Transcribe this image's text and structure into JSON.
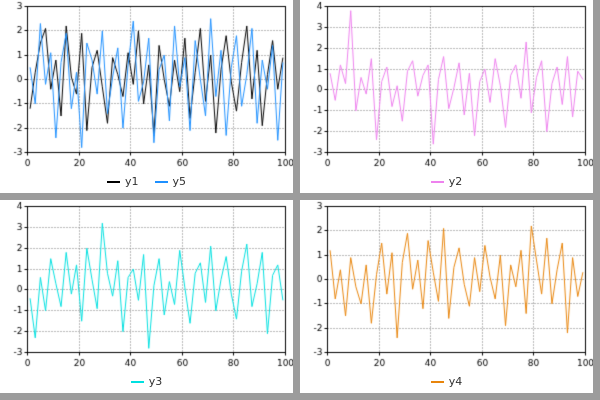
{
  "page": {
    "background": "#ffffff",
    "divider_color": "#9c9c9c",
    "grid_style": "dotted",
    "axis_color": "#000000"
  },
  "chart_data": [
    {
      "type": "line",
      "title": "",
      "xlabel": "",
      "ylabel": "",
      "xlim": [
        0,
        100
      ],
      "ylim": [
        -3,
        3
      ],
      "xticks": [
        0,
        20,
        40,
        60,
        80,
        100
      ],
      "ytick_step": 1,
      "grid": "dotted",
      "legend_position": "bottom-center",
      "x": [
        1,
        3,
        5,
        7,
        9,
        11,
        13,
        15,
        17,
        19,
        21,
        23,
        25,
        27,
        29,
        31,
        33,
        35,
        37,
        39,
        41,
        43,
        45,
        47,
        49,
        51,
        53,
        55,
        57,
        59,
        61,
        63,
        65,
        67,
        69,
        71,
        73,
        75,
        77,
        79,
        81,
        83,
        85,
        87,
        89,
        91,
        93,
        95,
        97,
        99
      ],
      "series": [
        {
          "name": "y1",
          "color": "#000000",
          "values": [
            -1.2,
            0.3,
            1.5,
            2.1,
            -0.4,
            0.8,
            -1.5,
            2.2,
            0.1,
            -0.6,
            1.9,
            -2.1,
            0.5,
            1.2,
            -0.3,
            -1.8,
            0.9,
            0.2,
            -0.7,
            1.1,
            -0.2,
            2.0,
            -1.0,
            0.6,
            -2.3,
            1.4,
            0.0,
            -1.1,
            0.8,
            -0.5,
            1.7,
            -1.6,
            0.3,
            2.1,
            -0.9,
            1.0,
            -2.2,
            0.4,
            1.8,
            -0.1,
            -1.3,
            0.7,
            2.2,
            -0.8,
            1.2,
            -1.9,
            0.2,
            1.6,
            -0.4,
            0.9
          ]
        },
        {
          "name": "y5",
          "color": "#1E90FF",
          "values": [
            0.5,
            -1.0,
            2.3,
            -0.2,
            1.1,
            -2.4,
            0.7,
            1.9,
            -1.2,
            0.3,
            -2.8,
            1.5,
            0.8,
            -0.6,
            2.0,
            -1.4,
            0.1,
            1.3,
            -2.0,
            0.6,
            2.4,
            -0.9,
            -0.1,
            1.7,
            -2.6,
            0.4,
            1.0,
            -1.7,
            2.2,
            -0.3,
            0.9,
            -2.1,
            1.6,
            0.0,
            -1.5,
            2.5,
            -0.7,
            1.2,
            -2.3,
            0.5,
            1.8,
            -1.1,
            0.2,
            2.1,
            -1.8,
            0.8,
            -0.4,
            1.4,
            -2.5,
            0.7
          ]
        }
      ]
    },
    {
      "type": "line",
      "title": "",
      "xlabel": "",
      "ylabel": "",
      "xlim": [
        0,
        100
      ],
      "ylim": [
        -3,
        4
      ],
      "xticks": [
        0,
        20,
        40,
        60,
        80,
        100
      ],
      "ytick_step": 1,
      "grid": "dotted",
      "legend_position": "bottom-center",
      "x": [
        1,
        3,
        5,
        7,
        9,
        11,
        13,
        15,
        17,
        19,
        21,
        23,
        25,
        27,
        29,
        31,
        33,
        35,
        37,
        39,
        41,
        43,
        45,
        47,
        49,
        51,
        53,
        55,
        57,
        59,
        61,
        63,
        65,
        67,
        69,
        71,
        73,
        75,
        77,
        79,
        81,
        83,
        85,
        87,
        89,
        91,
        93,
        95,
        97,
        99
      ],
      "series": [
        {
          "name": "y2",
          "color": "#EE82EE",
          "values": [
            0.8,
            -0.5,
            1.2,
            0.3,
            3.8,
            -1.0,
            0.6,
            -0.2,
            1.5,
            -2.4,
            0.4,
            1.1,
            -0.8,
            0.2,
            -1.5,
            0.9,
            1.4,
            -0.3,
            0.7,
            1.2,
            -2.6,
            0.5,
            1.6,
            -0.9,
            0.1,
            1.3,
            -1.2,
            0.8,
            -2.2,
            0.4,
            1.0,
            -0.6,
            1.5,
            0.2,
            -1.8,
            0.7,
            1.2,
            -0.4,
            2.3,
            -1.1,
            0.6,
            1.4,
            -2.0,
            0.3,
            1.1,
            -0.7,
            1.6,
            -1.3,
            0.9,
            0.5
          ]
        }
      ]
    },
    {
      "type": "line",
      "title": "",
      "xlabel": "",
      "ylabel": "",
      "xlim": [
        0,
        100
      ],
      "ylim": [
        -3,
        4
      ],
      "xticks": [
        0,
        20,
        40,
        60,
        80,
        100
      ],
      "ytick_step": 1,
      "grid": "dotted",
      "legend_position": "bottom-center",
      "x": [
        1,
        3,
        5,
        7,
        9,
        11,
        13,
        15,
        17,
        19,
        21,
        23,
        25,
        27,
        29,
        31,
        33,
        35,
        37,
        39,
        41,
        43,
        45,
        47,
        49,
        51,
        53,
        55,
        57,
        59,
        61,
        63,
        65,
        67,
        69,
        71,
        73,
        75,
        77,
        79,
        81,
        83,
        85,
        87,
        89,
        91,
        93,
        95,
        97,
        99
      ],
      "series": [
        {
          "name": "y3",
          "color": "#00E0E0",
          "values": [
            -0.4,
            -2.3,
            0.6,
            -1.0,
            1.5,
            0.3,
            -0.8,
            1.8,
            -0.2,
            1.2,
            -1.5,
            2.0,
            0.5,
            -0.9,
            3.2,
            0.8,
            -0.3,
            1.4,
            -2.0,
            0.6,
            1.0,
            -0.5,
            1.7,
            -2.8,
            0.2,
            1.5,
            -1.2,
            0.4,
            -0.7,
            1.9,
            0.1,
            -1.6,
            0.8,
            1.3,
            -0.6,
            2.1,
            -1.0,
            0.5,
            1.6,
            -0.2,
            -1.4,
            0.9,
            2.2,
            -0.8,
            0.3,
            1.8,
            -2.1,
            0.7,
            1.2,
            -0.5
          ]
        }
      ]
    },
    {
      "type": "line",
      "title": "",
      "xlabel": "",
      "ylabel": "",
      "xlim": [
        0,
        100
      ],
      "ylim": [
        -3,
        3
      ],
      "xticks": [
        0,
        20,
        40,
        60,
        80,
        100
      ],
      "ytick_step": 1,
      "grid": "dotted",
      "legend_position": "bottom-center",
      "x": [
        1,
        3,
        5,
        7,
        9,
        11,
        13,
        15,
        17,
        19,
        21,
        23,
        25,
        27,
        29,
        31,
        33,
        35,
        37,
        39,
        41,
        43,
        45,
        47,
        49,
        51,
        53,
        55,
        57,
        59,
        61,
        63,
        65,
        67,
        69,
        71,
        73,
        75,
        77,
        79,
        81,
        83,
        85,
        87,
        89,
        91,
        93,
        95,
        97,
        99
      ],
      "series": [
        {
          "name": "y4",
          "color": "#E8850C",
          "values": [
            1.2,
            -0.8,
            0.4,
            -1.5,
            0.9,
            -0.3,
            -1.0,
            0.6,
            -1.8,
            0.2,
            1.5,
            -0.6,
            1.1,
            -2.4,
            0.7,
            1.9,
            -0.4,
            0.8,
            -1.2,
            1.6,
            0.3,
            -0.9,
            2.1,
            -1.6,
            0.5,
            1.3,
            -0.2,
            -1.1,
            0.9,
            -0.5,
            1.4,
            0.1,
            -0.8,
            1.0,
            -1.9,
            0.6,
            -0.3,
            1.2,
            -1.4,
            2.2,
            0.8,
            -0.6,
            1.7,
            -1.0,
            0.4,
            1.5,
            -2.2,
            0.9,
            -0.7,
            0.3
          ]
        }
      ]
    }
  ]
}
